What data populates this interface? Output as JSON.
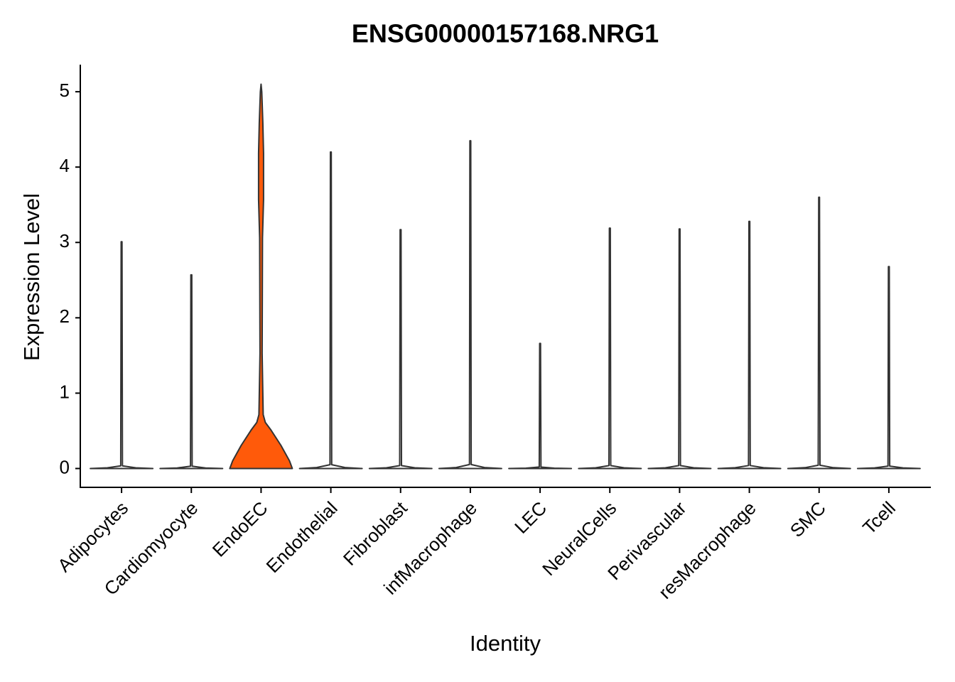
{
  "chart_data": {
    "type": "violin",
    "title": "ENSG00000157168.NRG1",
    "x_label": "Identity",
    "y_label": "Expression Level",
    "categories": [
      "Adipocytes",
      "Cardiomyocyte",
      "EndoEC",
      "Endothelial",
      "Fibroblast",
      "infMacrophage",
      "LEC",
      "NeuralCells",
      "Perivascular",
      "resMacrophage",
      "SMC",
      "Tcell"
    ],
    "values": [
      3.01,
      2.57,
      5.1,
      4.2,
      3.17,
      4.35,
      1.66,
      3.19,
      3.18,
      3.28,
      3.6,
      2.68
    ],
    "colors": [
      "#ffffff",
      "#ffffff",
      "#ff5a0a",
      "#ffffff",
      "#ffffff",
      "#ffffff",
      "#ffffff",
      "#ffffff",
      "#ffffff",
      "#ffffff",
      "#ffffff",
      "#ffffff"
    ],
    "ylim": [
      -0.25,
      5.35
    ],
    "yticks": [
      0,
      1,
      2,
      3,
      4,
      5
    ]
  }
}
